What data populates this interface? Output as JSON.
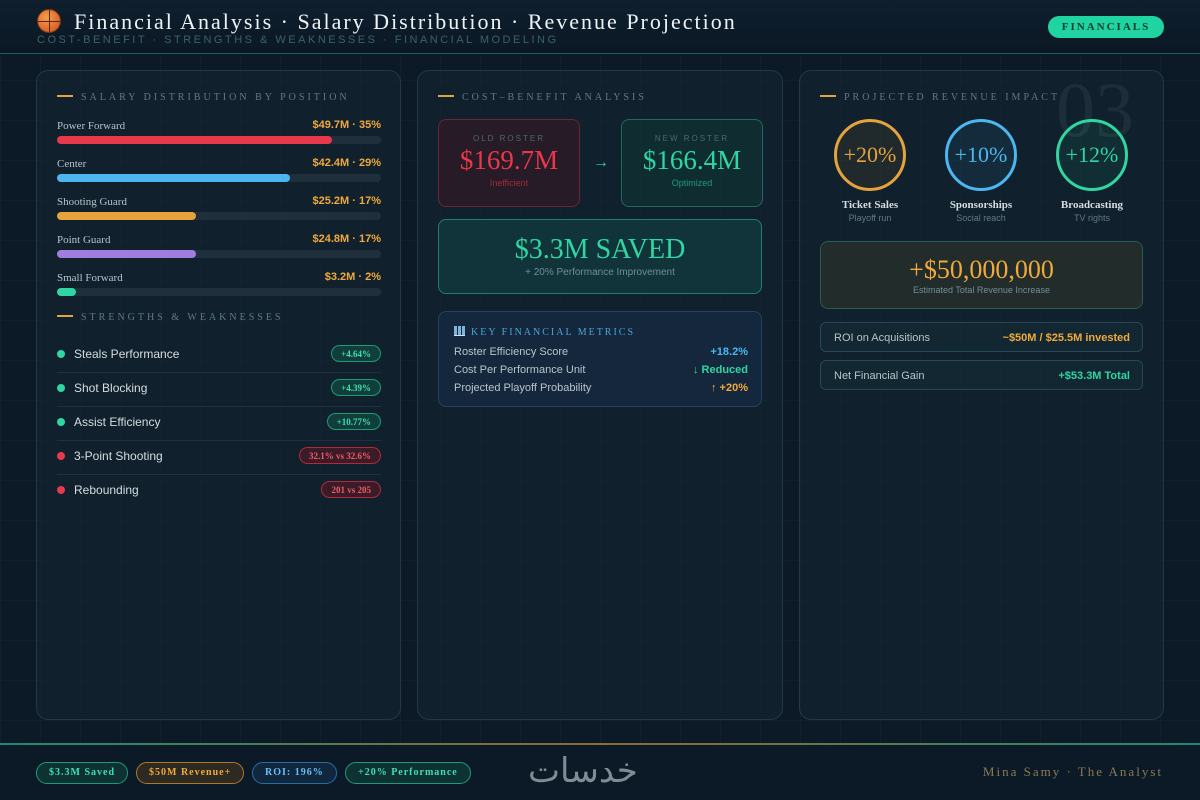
{
  "header": {
    "title": "Financial Analysis · Salary Distribution · Revenue Projection",
    "subtitle": "COST-BENEFIT · STRENGTHS & WEAKNESSES · FINANCIAL MODELING",
    "badge": "FINANCIALS",
    "icon": "basketball-icon"
  },
  "salary": {
    "title": "SALARY DISTRIBUTION BY POSITION",
    "rows": [
      {
        "position": "Power Forward",
        "value": "$49.7M · 35%",
        "share": 0.85,
        "color": "#e8384c"
      },
      {
        "position": "Center",
        "value": "$42.4M · 29%",
        "share": 0.72,
        "color": "#4cb6f0"
      },
      {
        "position": "Shooting Guard",
        "value": "$25.2M · 17%",
        "share": 0.43,
        "color": "#e6a23c"
      },
      {
        "position": "Point Guard",
        "value": "$24.8M · 17%",
        "share": 0.43,
        "color": "#a07ee0"
      },
      {
        "position": "Small Forward",
        "value": "$3.2M · 2%",
        "share": 0.06,
        "color": "#2fd6a2"
      }
    ]
  },
  "strengths": {
    "title": "STRENGTHS & WEAKNESSES",
    "rows": [
      {
        "name": "Steals Performance",
        "badge": "+4.64%",
        "type": "good"
      },
      {
        "name": "Shot Blocking",
        "badge": "+4.39%",
        "type": "good"
      },
      {
        "name": "Assist Efficiency",
        "badge": "+10.77%",
        "type": "good"
      },
      {
        "name": "3-Point Shooting",
        "badge": "32.1% vs 32.6%",
        "type": "bad"
      },
      {
        "name": "Rebounding",
        "badge": "201 vs 205",
        "type": "bad"
      }
    ]
  },
  "cost": {
    "title": "COST–BENEFIT ANALYSIS",
    "old": {
      "caption": "OLD ROSTER",
      "amount": "$169.7M",
      "note": "Inefficient"
    },
    "arrow": "→",
    "new": {
      "caption": "NEW ROSTER",
      "amount": "$166.4M",
      "note": "Optimized"
    },
    "saved": {
      "amount": "$3.3M SAVED",
      "note": "+ 20% Performance Improvement"
    },
    "metrics": {
      "title": "KEY FINANCIAL METRICS",
      "rows": [
        {
          "label": "Roster Efficiency Score",
          "value": "+18.2%",
          "color": "#4cb6f0"
        },
        {
          "label": "Cost Per Performance Unit",
          "value": "↓ Reduced",
          "color": "#2fd6a2"
        },
        {
          "label": "Projected Playoff Probability",
          "value": "↑ +20%",
          "color": "#f0a93c"
        }
      ]
    }
  },
  "revenue": {
    "title": "PROJECTED REVENUE IMPACT",
    "watermark": "03",
    "circles": [
      {
        "value": "+20%",
        "name": "Ticket Sales",
        "desc": "Playoff run"
      },
      {
        "value": "+10%",
        "name": "Sponsorships",
        "desc": "Social reach"
      },
      {
        "value": "+12%",
        "name": "Broadcasting",
        "desc": "TV rights"
      }
    ],
    "total": {
      "amount": "+$50,000,000",
      "note": "Estimated Total Revenue Increase"
    },
    "roi": {
      "label": "ROI on Acquisitions",
      "value": "~$50M / $25.5M invested"
    },
    "net": {
      "label": "Net Financial Gain",
      "value": "+$53.3M Total"
    }
  },
  "footer": {
    "tags": [
      "$3.3M Saved",
      "$50M Revenue+",
      "ROI: 196%",
      "+20% Performance"
    ],
    "logo": "خدسات",
    "author": "Mina Samy · The Analyst"
  }
}
